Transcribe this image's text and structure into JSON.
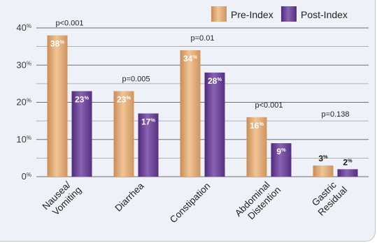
{
  "chart_data": {
    "type": "bar",
    "categories": [
      "Nausea/\nVomiting",
      "Diarrhea",
      "Constipation",
      "Abdominal\nDistention",
      "Gastric\nResidual"
    ],
    "series": [
      {
        "name": "Pre-Index",
        "values": [
          38,
          23,
          34,
          16,
          3
        ],
        "labels": [
          "38%",
          "23%",
          "34%",
          "16%",
          "3%"
        ],
        "color": "#e0ad78"
      },
      {
        "name": "Post-Index",
        "values": [
          23,
          17,
          28,
          9,
          2
        ],
        "labels": [
          "23%",
          "17%",
          "28%",
          "9%",
          "2%"
        ],
        "color": "#6d4596"
      }
    ],
    "p_values": [
      "p<0.001",
      "p=0.005",
      "p=0.01",
      "p<0.001",
      "p=0.138"
    ],
    "ylim": [
      0,
      40
    ],
    "yticks": [
      0,
      10,
      20,
      30,
      40
    ],
    "ytick_labels": [
      "0%",
      "10%",
      "20%",
      "30%",
      "40%"
    ],
    "grid": true,
    "legend_position": "top-right"
  }
}
